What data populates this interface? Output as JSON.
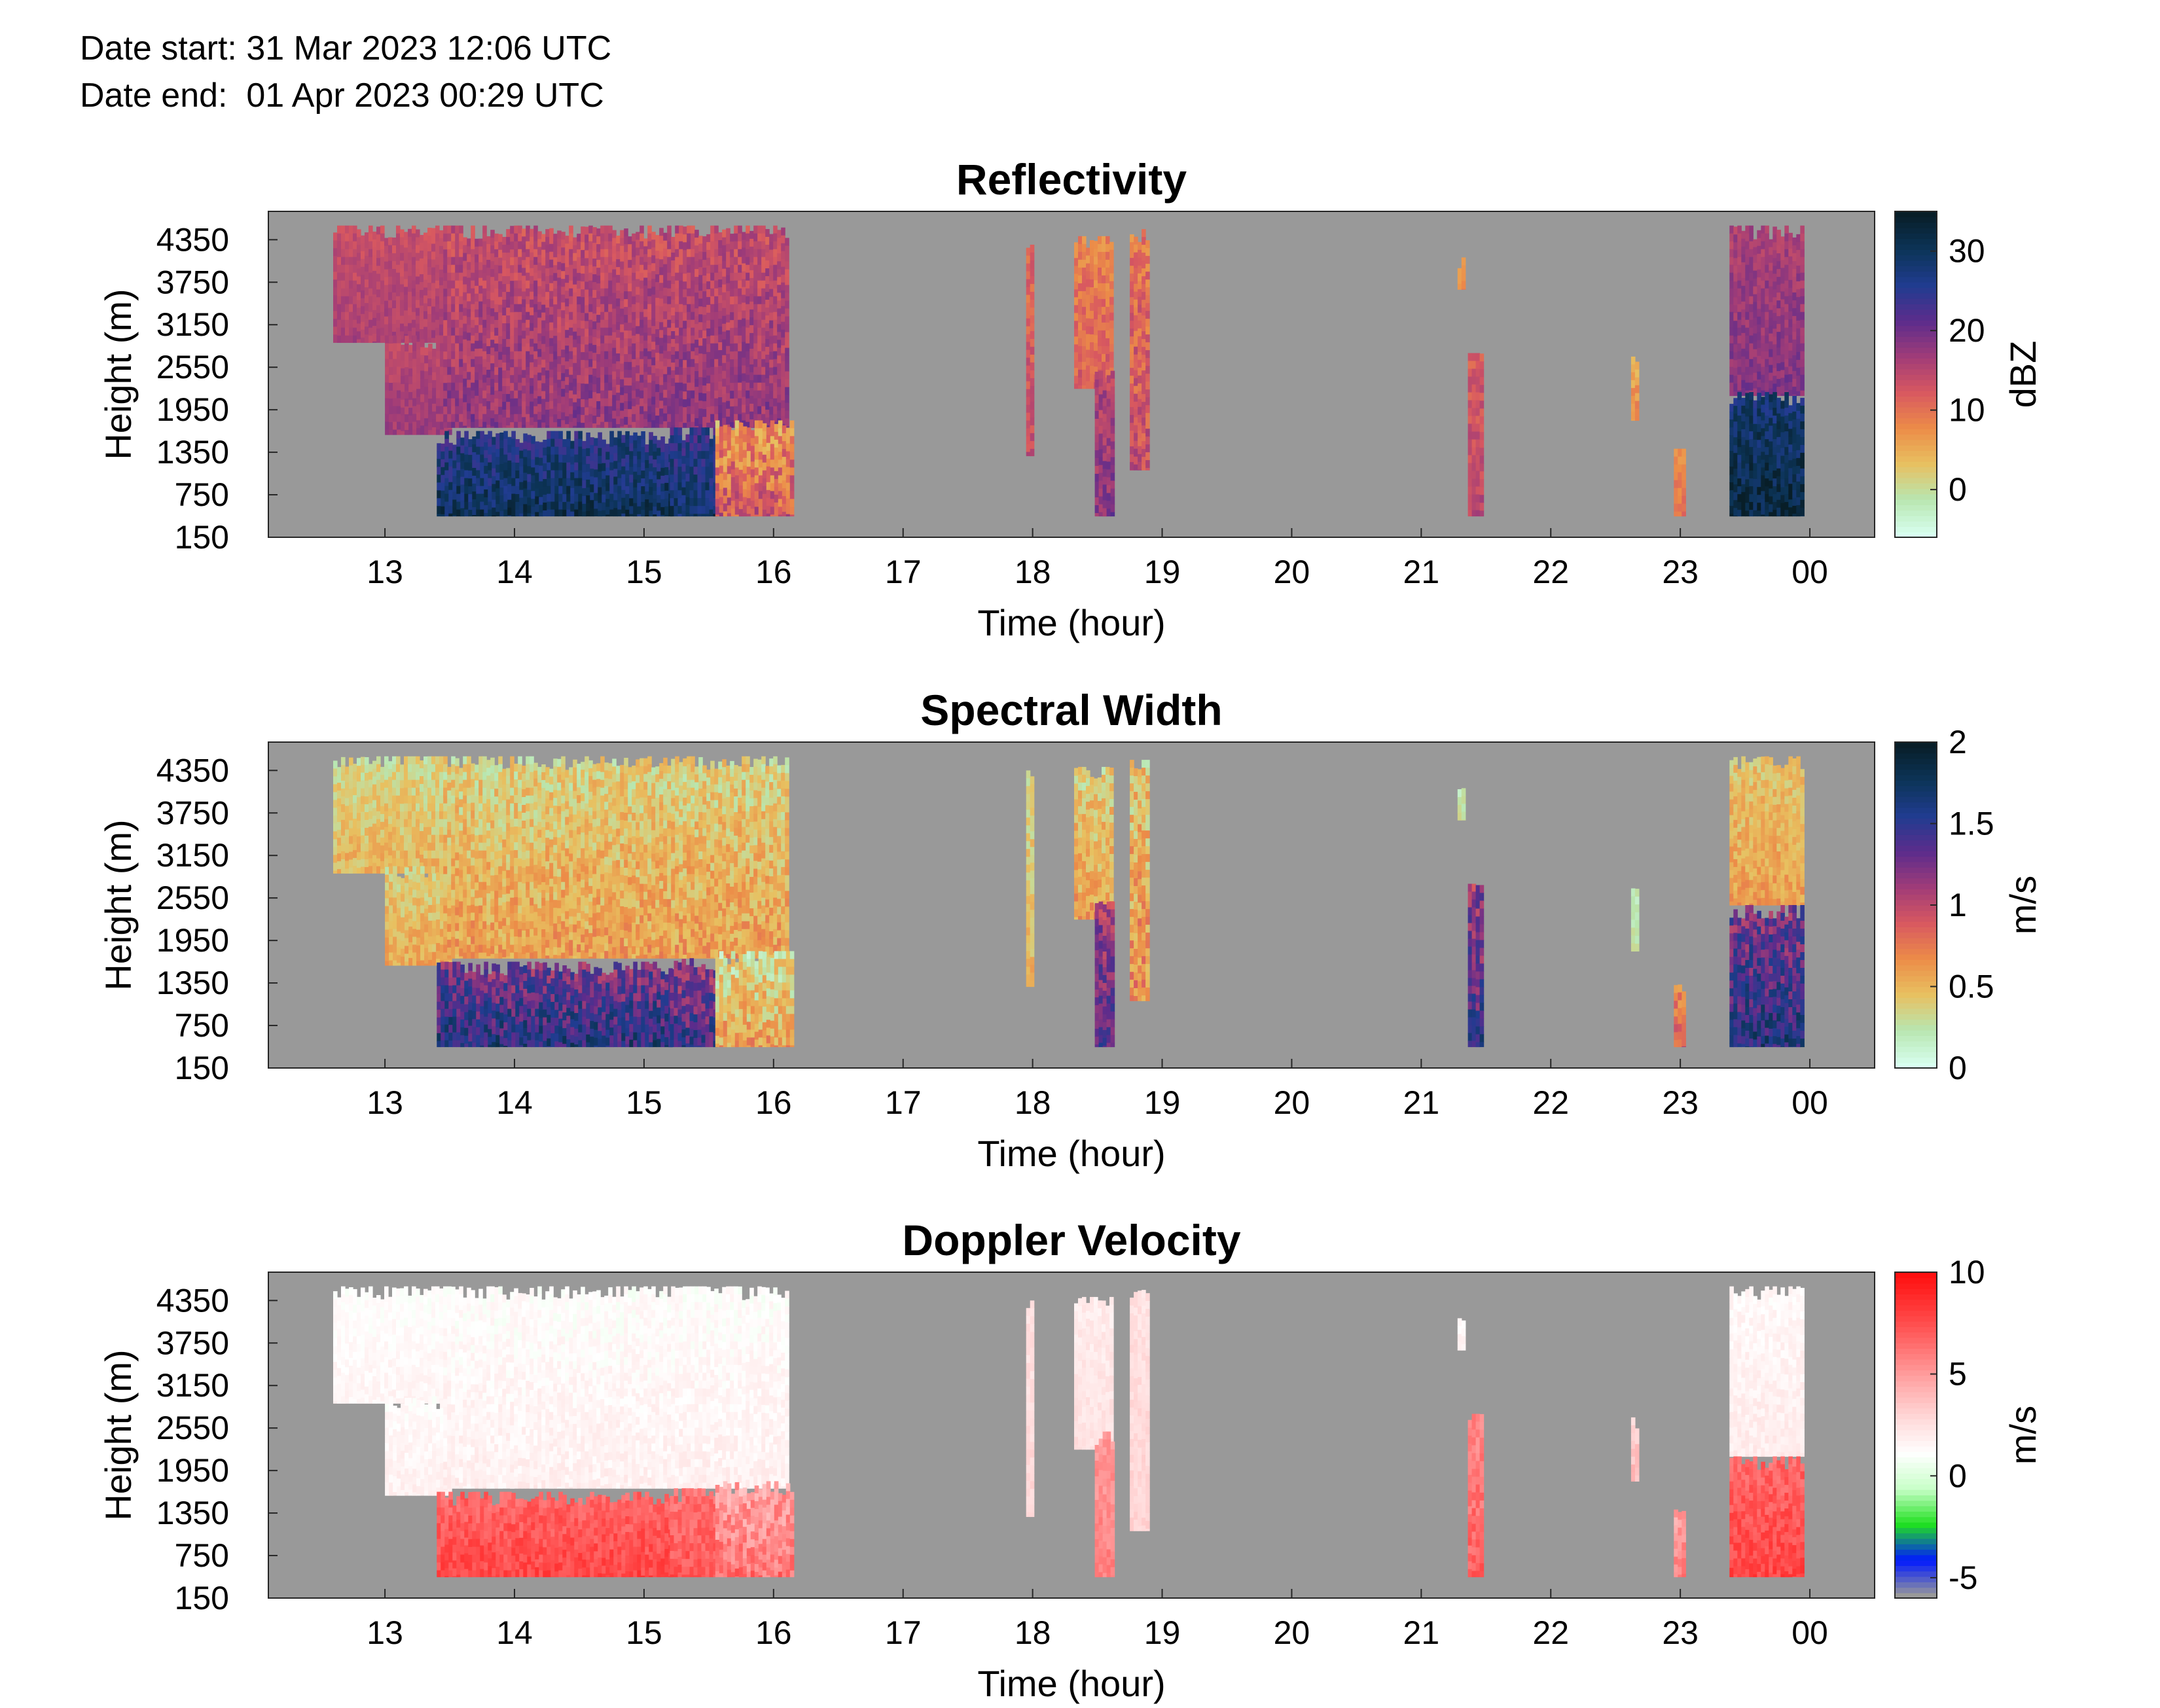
{
  "header": {
    "date_start": "Date start: 31 Mar 2023 12:06 UTC",
    "date_end": "Date end:  01 Apr 2023 00:29 UTC"
  },
  "chart_data": [
    {
      "type": "heatmap",
      "title": "Reflectivity",
      "xlabel": "Time (hour)",
      "ylabel": "Height (m)",
      "colorbar_label": "dBZ",
      "colorbar_ticks": [
        "0",
        "10",
        "20",
        "30"
      ],
      "colorbar_tick_values": [
        0,
        10,
        20,
        30
      ],
      "clim": [
        -6,
        35
      ],
      "colors": [
        "#d8fff0",
        "#b8e6b0",
        "#e8c060",
        "#ec8c48",
        "#d85860",
        "#a03c78",
        "#5c2c8c",
        "#203c90",
        "#0c3458",
        "#081e28"
      ],
      "x_ticks": [
        "13",
        "14",
        "15",
        "16",
        "17",
        "18",
        "19",
        "20",
        "21",
        "22",
        "23",
        "00"
      ],
      "y_ticks": [
        "150",
        "750",
        "1350",
        "1950",
        "2550",
        "3150",
        "3750",
        "4350"
      ],
      "xlim": [
        12.1,
        24.5
      ],
      "ylim": [
        150,
        4750
      ],
      "background": "#999999",
      "echoes": [
        {
          "t0": 12.6,
          "t1": 13.45,
          "h0": 2900,
          "h1": 4550,
          "v0": 12,
          "v1": 16
        },
        {
          "t0": 13.0,
          "t1": 13.5,
          "h0": 1600,
          "h1": 3000,
          "v0": 13,
          "v1": 17
        },
        {
          "t0": 13.45,
          "t1": 16.1,
          "h0": 1700,
          "h1": 4550,
          "v0": 11,
          "v1": 18
        },
        {
          "t0": 13.4,
          "t1": 15.2,
          "h0": 450,
          "h1": 1650,
          "v0": 22,
          "v1": 31
        },
        {
          "t0": 15.2,
          "t1": 15.55,
          "h0": 450,
          "h1": 1700,
          "v0": 21,
          "v1": 30
        },
        {
          "t0": 15.55,
          "t1": 16.15,
          "h0": 450,
          "h1": 1800,
          "v0": 2,
          "v1": 13
        },
        {
          "t0": 17.95,
          "t1": 18.0,
          "h0": 1300,
          "h1": 4350,
          "v0": 8,
          "v1": 14
        },
        {
          "t0": 18.32,
          "t1": 18.62,
          "h0": 2250,
          "h1": 4400,
          "v0": 6,
          "v1": 12
        },
        {
          "t0": 18.48,
          "t1": 18.63,
          "h0": 450,
          "h1": 2500,
          "v0": 12,
          "v1": 19
        },
        {
          "t0": 18.75,
          "t1": 18.9,
          "h0": 1100,
          "h1": 4500,
          "v0": 6,
          "v1": 14
        },
        {
          "t0": 21.36,
          "t1": 21.47,
          "h0": 450,
          "h1": 2750,
          "v0": 10,
          "v1": 15
        },
        {
          "t0": 21.28,
          "t1": 21.32,
          "h0": 3650,
          "h1": 4100,
          "v0": 4,
          "v1": 8
        },
        {
          "t0": 23.38,
          "t1": 23.94,
          "h0": 2150,
          "h1": 4550,
          "v0": 14,
          "v1": 19
        },
        {
          "t0": 23.38,
          "t1": 23.94,
          "h0": 450,
          "h1": 2200,
          "v0": 25,
          "v1": 33
        },
        {
          "t0": 22.95,
          "t1": 23.02,
          "h0": 450,
          "h1": 1400,
          "v0": 6,
          "v1": 10
        },
        {
          "t0": 22.62,
          "t1": 22.68,
          "h0": 1800,
          "h1": 2700,
          "v0": 3,
          "v1": 8
        }
      ]
    },
    {
      "type": "heatmap",
      "title": "Spectral Width",
      "xlabel": "Time (hour)",
      "ylabel": "Height (m)",
      "colorbar_label": "m/s",
      "colorbar_ticks": [
        "0",
        "0.5",
        "1",
        "1.5",
        "2"
      ],
      "colorbar_tick_values": [
        0,
        0.5,
        1,
        1.5,
        2
      ],
      "clim": [
        0,
        2
      ],
      "colors": [
        "#d8fff0",
        "#b8e6b0",
        "#e8c060",
        "#ec8c48",
        "#d85860",
        "#a03c78",
        "#5c2c8c",
        "#203c90",
        "#0c3458",
        "#081e28"
      ],
      "x_ticks": [
        "13",
        "14",
        "15",
        "16",
        "17",
        "18",
        "19",
        "20",
        "21",
        "22",
        "23",
        "00"
      ],
      "y_ticks": [
        "150",
        "750",
        "1350",
        "1950",
        "2550",
        "3150",
        "3750",
        "4350"
      ],
      "xlim": [
        12.1,
        24.5
      ],
      "ylim": [
        150,
        4750
      ],
      "background": "#999999",
      "echoes": [
        {
          "t0": 12.6,
          "t1": 13.45,
          "h0": 2900,
          "h1": 4550,
          "v0": 0.2,
          "v1": 0.5
        },
        {
          "t0": 13.0,
          "t1": 13.5,
          "h0": 1600,
          "h1": 3000,
          "v0": 0.25,
          "v1": 0.55
        },
        {
          "t0": 13.45,
          "t1": 16.1,
          "h0": 1700,
          "h1": 4550,
          "v0": 0.2,
          "v1": 0.6
        },
        {
          "t0": 13.4,
          "t1": 15.2,
          "h0": 450,
          "h1": 1650,
          "v0": 1.0,
          "v1": 1.6
        },
        {
          "t0": 15.2,
          "t1": 15.55,
          "h0": 450,
          "h1": 1700,
          "v0": 0.9,
          "v1": 1.5
        },
        {
          "t0": 15.55,
          "t1": 16.15,
          "h0": 450,
          "h1": 1800,
          "v0": 0.1,
          "v1": 0.6
        },
        {
          "t0": 17.95,
          "t1": 18.0,
          "h0": 1300,
          "h1": 4350,
          "v0": 0.2,
          "v1": 0.5
        },
        {
          "t0": 18.32,
          "t1": 18.62,
          "h0": 2250,
          "h1": 4400,
          "v0": 0.2,
          "v1": 0.6
        },
        {
          "t0": 18.48,
          "t1": 18.63,
          "h0": 450,
          "h1": 2500,
          "v0": 0.9,
          "v1": 1.4
        },
        {
          "t0": 18.75,
          "t1": 18.9,
          "h0": 1100,
          "h1": 4500,
          "v0": 0.2,
          "v1": 0.7
        },
        {
          "t0": 21.36,
          "t1": 21.47,
          "h0": 450,
          "h1": 2750,
          "v0": 0.9,
          "v1": 1.5
        },
        {
          "t0": 21.28,
          "t1": 21.32,
          "h0": 3650,
          "h1": 4100,
          "v0": 0.1,
          "v1": 0.3
        },
        {
          "t0": 23.38,
          "t1": 23.94,
          "h0": 2450,
          "h1": 4550,
          "v0": 0.3,
          "v1": 0.6
        },
        {
          "t0": 23.38,
          "t1": 23.94,
          "h0": 450,
          "h1": 2450,
          "v0": 1.0,
          "v1": 1.6
        },
        {
          "t0": 22.95,
          "t1": 23.02,
          "h0": 450,
          "h1": 1400,
          "v0": 0.5,
          "v1": 0.9
        },
        {
          "t0": 22.62,
          "t1": 22.68,
          "h0": 1800,
          "h1": 2700,
          "v0": 0.1,
          "v1": 0.3
        }
      ]
    },
    {
      "type": "heatmap",
      "title": "Doppler Velocity",
      "xlabel": "Time (hour)",
      "ylabel": "Height (m)",
      "colorbar_label": "m/s",
      "colorbar_ticks": [
        "-5",
        "0",
        "5",
        "10"
      ],
      "colorbar_tick_values": [
        -5,
        0,
        5,
        10
      ],
      "clim": [
        -6,
        10
      ],
      "colors": [
        "#999999",
        "#0018ff",
        "#20e020",
        "#c8ffc8",
        "#ffffff",
        "#ffd8d8",
        "#ffa8a8",
        "#ff7070",
        "#ff3c3c",
        "#ff1010"
      ],
      "x_ticks": [
        "13",
        "14",
        "15",
        "16",
        "17",
        "18",
        "19",
        "20",
        "21",
        "22",
        "23",
        "00"
      ],
      "y_ticks": [
        "150",
        "750",
        "1350",
        "1950",
        "2550",
        "3150",
        "3750",
        "4350"
      ],
      "xlim": [
        12.1,
        24.5
      ],
      "ylim": [
        150,
        4750
      ],
      "background": "#999999",
      "echoes": [
        {
          "t0": 12.6,
          "t1": 13.45,
          "h0": 2900,
          "h1": 4550,
          "v0": 0.8,
          "v1": 1.6
        },
        {
          "t0": 13.0,
          "t1": 13.5,
          "h0": 1600,
          "h1": 3000,
          "v0": 0.9,
          "v1": 1.8
        },
        {
          "t0": 13.45,
          "t1": 16.1,
          "h0": 1700,
          "h1": 4550,
          "v0": 0.7,
          "v1": 1.8
        },
        {
          "t0": 13.4,
          "t1": 15.2,
          "h0": 450,
          "h1": 1650,
          "v0": 6.0,
          "v1": 8.0
        },
        {
          "t0": 15.2,
          "t1": 15.55,
          "h0": 450,
          "h1": 1700,
          "v0": 5.5,
          "v1": 7.5
        },
        {
          "t0": 15.55,
          "t1": 16.15,
          "h0": 450,
          "h1": 1800,
          "v0": 3.5,
          "v1": 6.5
        },
        {
          "t0": 17.95,
          "t1": 18.0,
          "h0": 1300,
          "h1": 4350,
          "v0": 2.0,
          "v1": 3.0
        },
        {
          "t0": 18.32,
          "t1": 18.62,
          "h0": 2250,
          "h1": 4400,
          "v0": 1.5,
          "v1": 2.5
        },
        {
          "t0": 18.48,
          "t1": 18.63,
          "h0": 450,
          "h1": 2500,
          "v0": 4.5,
          "v1": 6.0
        },
        {
          "t0": 18.75,
          "t1": 18.9,
          "h0": 1100,
          "h1": 4500,
          "v0": 2.0,
          "v1": 3.0
        },
        {
          "t0": 21.36,
          "t1": 21.47,
          "h0": 450,
          "h1": 2750,
          "v0": 5.0,
          "v1": 7.0
        },
        {
          "t0": 21.28,
          "t1": 21.32,
          "h0": 3650,
          "h1": 4100,
          "v0": 1.0,
          "v1": 2.0
        },
        {
          "t0": 23.38,
          "t1": 23.94,
          "h0": 2150,
          "h1": 4550,
          "v0": 1.0,
          "v1": 2.0
        },
        {
          "t0": 23.38,
          "t1": 23.94,
          "h0": 450,
          "h1": 2150,
          "v0": 6.0,
          "v1": 8.0
        },
        {
          "t0": 22.95,
          "t1": 23.02,
          "h0": 450,
          "h1": 1400,
          "v0": 4.0,
          "v1": 6.0
        },
        {
          "t0": 22.62,
          "t1": 22.68,
          "h0": 1800,
          "h1": 2700,
          "v0": 2.5,
          "v1": 4.0
        }
      ]
    }
  ]
}
